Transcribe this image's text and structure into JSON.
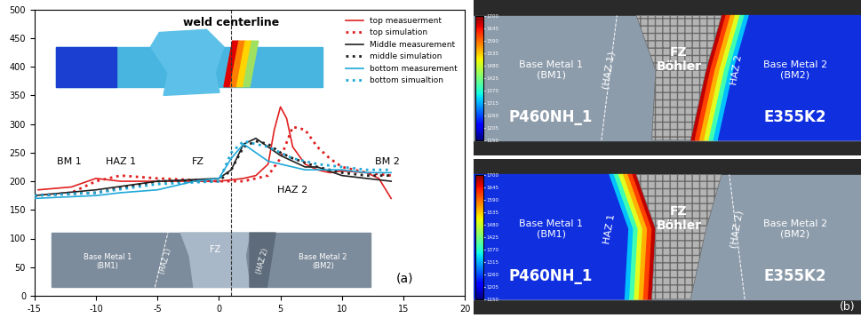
{
  "chart_data": {
    "type": "line",
    "xlim": [
      -15,
      20
    ],
    "xticks": [
      -15,
      -10,
      -5,
      0,
      5,
      10,
      15,
      20
    ],
    "ylim": [
      0,
      500
    ],
    "yticks": [
      0,
      50,
      100,
      150,
      200,
      250,
      300,
      350,
      400,
      450,
      500
    ],
    "legend": "upper right",
    "centerline": {
      "text": "weld centerline",
      "x": 1
    },
    "regions": [
      "BM 1",
      "HAZ 1",
      "FZ",
      "HAZ 2",
      "BM 2"
    ],
    "panel_label": "(a)",
    "inset_labels": {
      "bm1": "Base Metal 1\n(BM1)",
      "haz1": "(HAZ 1)",
      "fz": "FZ",
      "haz2": "(HAZ 2)",
      "bm2": "Base Metal 2\n(BM2)"
    },
    "series": [
      {
        "name": "top measuerment",
        "color": "#e02020",
        "line_style": "solid",
        "x": [
          -14.7,
          -12,
          -10,
          -8,
          -5,
          0,
          2,
          3,
          4,
          4.5,
          5,
          5.5,
          6,
          7,
          8,
          9,
          10,
          12,
          13,
          14
        ],
        "values": [
          185,
          190,
          205,
          200,
          200,
          200,
          205,
          210,
          230,
          290,
          330,
          310,
          260,
          230,
          220,
          215,
          218,
          215,
          205,
          170
        ]
      },
      {
        "name": "top simulation",
        "color": "#e02020",
        "line_style": "dotted",
        "x": [
          -15,
          -12,
          -10,
          -8,
          -5,
          0,
          2,
          4,
          5,
          6,
          7,
          8,
          9,
          10,
          12,
          14
        ],
        "values": [
          175,
          180,
          200,
          210,
          205,
          200,
          200,
          210,
          240,
          295,
          290,
          260,
          240,
          225,
          215,
          210
        ]
      },
      {
        "name": "Middle measurement",
        "color": "#202020",
        "line_style": "solid",
        "x": [
          -15,
          -10,
          -5,
          0,
          1,
          2,
          3,
          4,
          5,
          6,
          7,
          8,
          10,
          12,
          14
        ],
        "values": [
          175,
          185,
          200,
          205,
          220,
          265,
          275,
          260,
          245,
          235,
          225,
          225,
          210,
          205,
          200
        ]
      },
      {
        "name": "middle simulation",
        "color": "#202020",
        "line_style": "dotted",
        "x": [
          -15,
          -10,
          -5,
          0,
          1,
          2,
          3,
          4,
          5,
          6,
          8,
          10,
          12,
          14
        ],
        "values": [
          175,
          180,
          200,
          200,
          220,
          260,
          270,
          265,
          250,
          240,
          225,
          215,
          210,
          210
        ]
      },
      {
        "name": "bottom measurement",
        "color": "#1fa8d8",
        "line_style": "solid",
        "x": [
          -15,
          -10,
          -8,
          -5,
          -2,
          0,
          1,
          2,
          3,
          4,
          5,
          7,
          10,
          12,
          14
        ],
        "values": [
          170,
          175,
          180,
          185,
          200,
          205,
          240,
          265,
          250,
          235,
          230,
          220,
          220,
          215,
          215
        ]
      },
      {
        "name": "bottom simualtion",
        "color": "#1fa8d8",
        "line_style": "dotted",
        "x": [
          -15,
          -10,
          -5,
          0,
          1,
          2,
          3,
          4,
          6,
          8,
          10,
          12,
          14
        ],
        "values": [
          175,
          180,
          195,
          200,
          250,
          270,
          265,
          260,
          240,
          230,
          225,
          220,
          220
        ]
      }
    ]
  },
  "panel_b": {
    "label": "(b)",
    "colorbar": {
      "range": [
        1150,
        1700
      ],
      "ticks": [
        1150,
        1205,
        1260,
        1315,
        1370,
        1425,
        1480,
        1535,
        1590,
        1645,
        1700
      ]
    },
    "images": [
      {
        "bm1": "Base Metal 1\n(BM1)",
        "bm1_grade": "P460NH_1",
        "haz1": "(HAZ 1)",
        "fz": "FZ\nBöhler",
        "haz2": "HAZ 2",
        "bm2": "Base Metal 2\n(BM2)",
        "bm2_grade": "E355K2"
      },
      {
        "bm1": "Base Metal 1\n(BM1)",
        "bm1_grade": "P460NH_1",
        "haz1": "HAZ 1",
        "fz": "FZ\nBöhler",
        "haz2": "(HAZ 2)",
        "bm2": "Base Metal 2\n(BM2)",
        "bm2_grade": "E355K2"
      }
    ]
  }
}
